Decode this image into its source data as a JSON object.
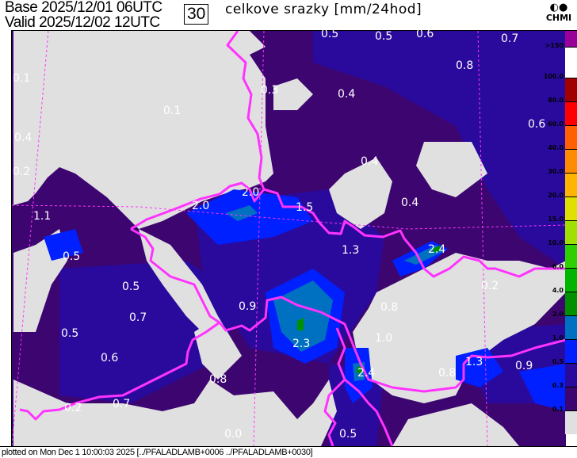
{
  "header": {
    "base": "Base 2025/12/01 06UTC",
    "valid": "Valid 2025/12/02 12UTC",
    "forecast_step": "30",
    "title": "celkove srazky [mm/24hod]",
    "logo_text": "CHMI"
  },
  "footer": {
    "text": "plotted on Mon Dec  1 10:00:03 2025 [../PFALADLAMB+0006 ../PFALADLAMB+0030]"
  },
  "legend": {
    "labels": [
      ">150",
      "100.0",
      "80.0",
      "60.0",
      "40.0",
      "30.0",
      "20.0",
      "15.0",
      "10.0",
      "6.0",
      "4.0",
      "2.0",
      "1.0",
      "0.5",
      "0.3",
      "0.1"
    ],
    "colors": [
      "#990099",
      "#ffffff",
      "#a00000",
      "#ff0000",
      "#ff6000",
      "#ff8c00",
      "#ffb400",
      "#e0e000",
      "#a0e000",
      "#30d000",
      "#00b400",
      "#009000",
      "#0070c0",
      "#0020ff",
      "#2a0a9c",
      "#3c0570",
      "#e0e0e0"
    ]
  },
  "map": {
    "colors": {
      "no_precip": "#e0e0e0",
      "low": "#3c0570",
      "mid": "#2a0a9c",
      "blue": "#0020ff",
      "steel": "#0070c0",
      "green": "#009000",
      "border": "#ff33ff"
    },
    "point_values": [
      "0.5",
      "0.5",
      "0.6",
      "0.7",
      "0.1",
      "0.3",
      "0.1",
      "0.4",
      "0.8",
      "0.6",
      "0.4",
      "0.4",
      "0.2",
      "0.4",
      "2.0",
      "2.0",
      "1.5",
      "1.1",
      "1.3",
      "2.4",
      "0.5",
      "0.5",
      "0.9",
      "0.8",
      "0.7",
      "1.0",
      "0.5",
      "2.3",
      "0.6",
      "0.8",
      "2.4",
      "1.3",
      "0.9",
      "0.8",
      "0.2",
      "0.7",
      "0.0",
      "0.5",
      "0.2"
    ]
  }
}
